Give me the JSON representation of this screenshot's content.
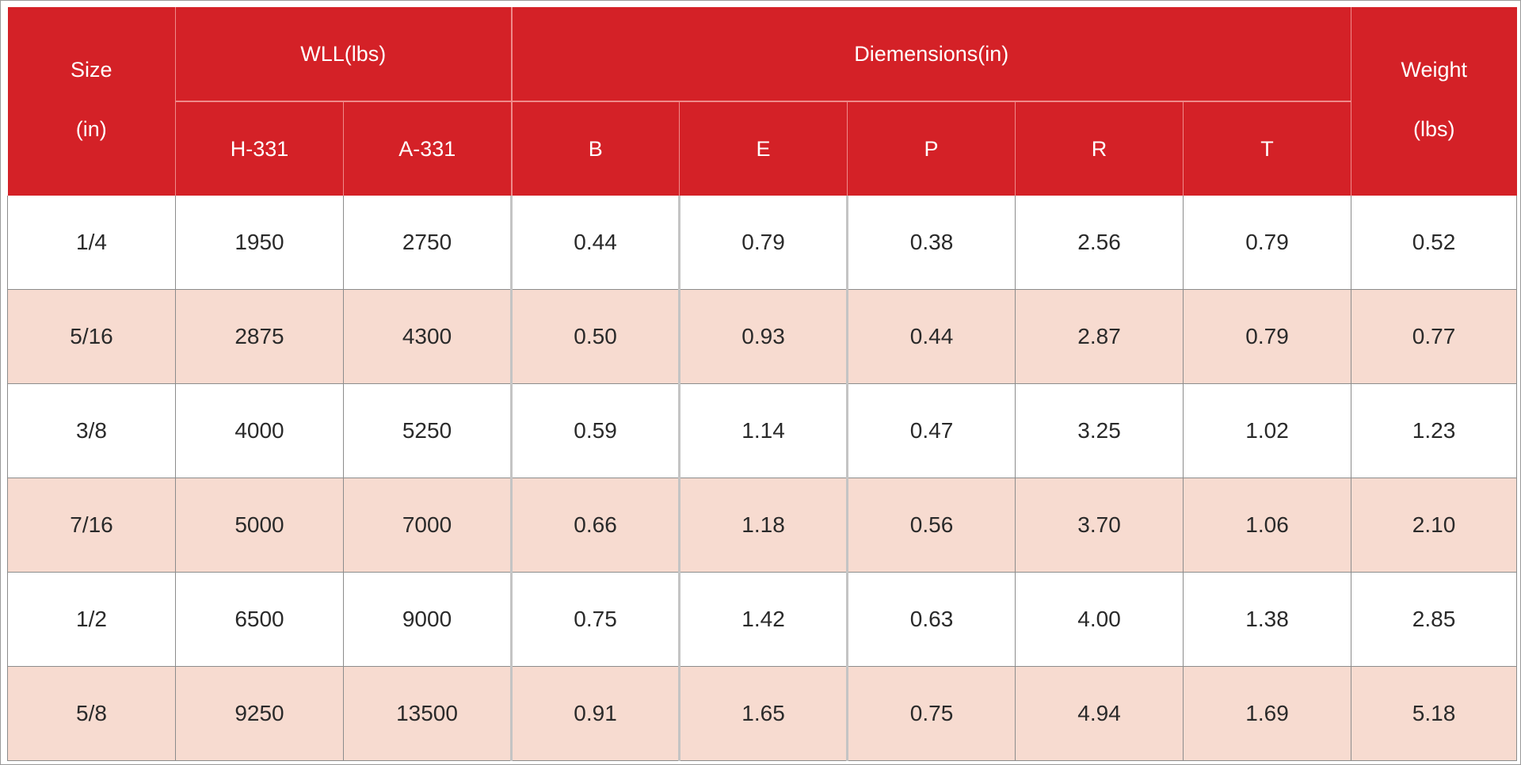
{
  "table": {
    "headers": {
      "size": {
        "line1": "Size",
        "line2": "(in)"
      },
      "wll": {
        "label": "WLL(lbs)",
        "sub": [
          "H-331",
          "A-331"
        ]
      },
      "dimensions": {
        "label": "Diemensions(in)",
        "sub": [
          "B",
          "E",
          "P",
          "R",
          "T"
        ]
      },
      "weight": {
        "line1": "Weight",
        "line2": "(lbs)"
      }
    },
    "rows": [
      [
        "1/4",
        "1950",
        "2750",
        "0.44",
        "0.79",
        "0.38",
        "2.56",
        "0.79",
        "0.52"
      ],
      [
        "5/16",
        "2875",
        "4300",
        "0.50",
        "0.93",
        "0.44",
        "2.87",
        "0.79",
        "0.77"
      ],
      [
        "3/8",
        "4000",
        "5250",
        "0.59",
        "1.14",
        "0.47",
        "3.25",
        "1.02",
        "1.23"
      ],
      [
        "7/16",
        "5000",
        "7000",
        "0.66",
        "1.18",
        "0.56",
        "3.70",
        "1.06",
        "2.10"
      ],
      [
        "1/2",
        "6500",
        "9000",
        "0.75",
        "1.42",
        "0.63",
        "4.00",
        "1.38",
        "2.85"
      ],
      [
        "5/8",
        "9250",
        "13500",
        "0.91",
        "1.65",
        "0.75",
        "4.94",
        "1.69",
        "5.18"
      ]
    ]
  },
  "colors": {
    "header_bg": "#d42127",
    "header_text": "#ffffff",
    "band_row_bg": "#f7dbd0",
    "plain_row_bg": "#ffffff"
  }
}
